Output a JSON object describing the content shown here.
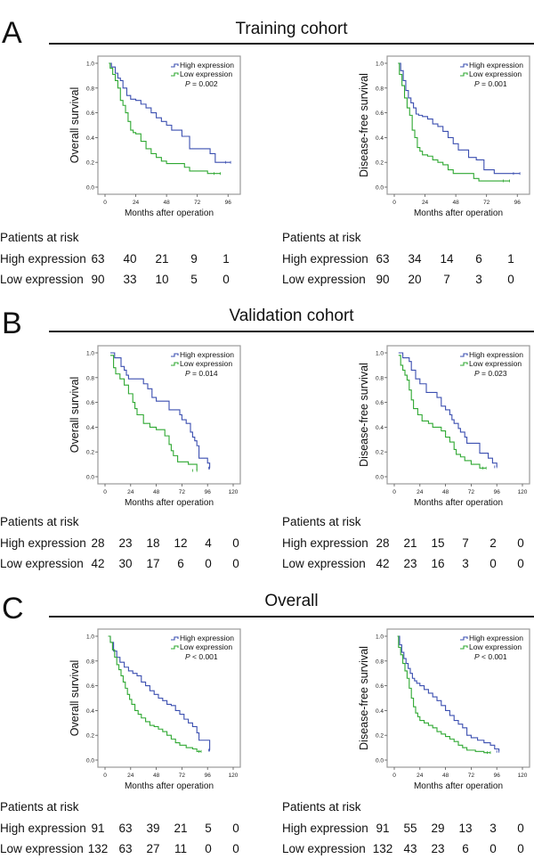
{
  "colors": {
    "high": "#3b4fb0",
    "low": "#2fa832",
    "frame": "#9a9a9a"
  },
  "sections": [
    {
      "letter": "A",
      "title": "Training cohort"
    },
    {
      "letter": "B",
      "title": "Validation cohort"
    },
    {
      "letter": "C",
      "title": "Overall"
    }
  ],
  "chart_data": [
    {
      "type": "line",
      "id": "A-OS",
      "section": "A",
      "title": "",
      "xlabel": "Months after operation",
      "ylabel": "Overall survival",
      "xlim": [
        0,
        100
      ],
      "ylim": [
        0,
        1.0
      ],
      "xticks": [
        0,
        24,
        48,
        72,
        96
      ],
      "yticks": [
        "0.0",
        "0.2",
        "0.4",
        "0.6",
        "0.8",
        "1.0"
      ],
      "legend": [
        "High expression",
        "Low expression"
      ],
      "legend_position": "top-right",
      "annotation": {
        "p_label": "P",
        "p_text": " = 0.002"
      },
      "series": [
        {
          "name": "High expression",
          "x": [
            3,
            5,
            8,
            10,
            12,
            14,
            17,
            20,
            24,
            28,
            32,
            36,
            40,
            44,
            48,
            52,
            56,
            60,
            66,
            72,
            82,
            86,
            90,
            98
          ],
          "y": [
            1.0,
            0.97,
            0.92,
            0.88,
            0.86,
            0.8,
            0.74,
            0.71,
            0.7,
            0.67,
            0.64,
            0.6,
            0.56,
            0.53,
            0.5,
            0.46,
            0.46,
            0.41,
            0.31,
            0.31,
            0.27,
            0.2,
            0.2,
            0.2
          ]
        },
        {
          "name": "Low expression",
          "x": [
            3,
            4,
            6,
            8,
            10,
            12,
            14,
            16,
            18,
            20,
            22,
            24,
            28,
            32,
            36,
            40,
            44,
            48,
            56,
            62,
            66,
            80,
            90
          ],
          "y": [
            1.0,
            0.96,
            0.91,
            0.86,
            0.8,
            0.7,
            0.66,
            0.6,
            0.53,
            0.46,
            0.44,
            0.43,
            0.37,
            0.31,
            0.27,
            0.24,
            0.21,
            0.19,
            0.19,
            0.16,
            0.13,
            0.11,
            0.11
          ]
        }
      ],
      "at_risk": {
        "header": "Patients at risk",
        "rows": [
          {
            "label": "High expression",
            "values": [
              "63",
              "40",
              "21",
              "9",
              "1"
            ]
          },
          {
            "label": "Low expression",
            "values": [
              "90",
              "33",
              "10",
              "5",
              "0"
            ]
          }
        ]
      }
    },
    {
      "type": "line",
      "id": "A-DFS",
      "section": "A",
      "title": "",
      "xlabel": "Months after operation",
      "ylabel": "Disease-free survival",
      "xlim": [
        0,
        100
      ],
      "ylim": [
        0,
        1.0
      ],
      "xticks": [
        0,
        24,
        48,
        72,
        96
      ],
      "yticks": [
        "0.0",
        "0.2",
        "0.4",
        "0.6",
        "0.8",
        "1.0"
      ],
      "legend": [
        "High expression",
        "Low expression"
      ],
      "legend_position": "top-right",
      "annotation": {
        "p_label": "P",
        "p_text": " = 0.001"
      },
      "series": [
        {
          "name": "High expression",
          "x": [
            3,
            5,
            7,
            9,
            11,
            13,
            15,
            17,
            19,
            22,
            26,
            30,
            34,
            38,
            42,
            46,
            50,
            54,
            58,
            64,
            70,
            78,
            88,
            98
          ],
          "y": [
            1.0,
            0.94,
            0.86,
            0.78,
            0.72,
            0.68,
            0.64,
            0.59,
            0.58,
            0.57,
            0.55,
            0.51,
            0.49,
            0.45,
            0.4,
            0.35,
            0.3,
            0.3,
            0.24,
            0.22,
            0.14,
            0.11,
            0.11,
            0.11
          ]
        },
        {
          "name": "Low expression",
          "x": [
            3,
            4,
            6,
            8,
            10,
            12,
            14,
            16,
            18,
            20,
            22,
            26,
            30,
            34,
            38,
            42,
            46,
            56,
            62,
            66,
            80,
            90
          ],
          "y": [
            1.0,
            0.91,
            0.82,
            0.72,
            0.64,
            0.58,
            0.46,
            0.4,
            0.32,
            0.29,
            0.26,
            0.25,
            0.22,
            0.2,
            0.18,
            0.14,
            0.11,
            0.11,
            0.07,
            0.05,
            0.05,
            0.05
          ]
        }
      ],
      "at_risk": {
        "header": "Patients at risk",
        "rows": [
          {
            "label": "High expression",
            "values": [
              "63",
              "34",
              "14",
              "6",
              "1"
            ]
          },
          {
            "label": "Low expression",
            "values": [
              "90",
              "20",
              "7",
              "3",
              "0"
            ]
          }
        ]
      }
    },
    {
      "type": "line",
      "id": "B-OS",
      "section": "B",
      "title": "",
      "xlabel": "Months after operation",
      "ylabel": "Overall survival",
      "xlim": [
        0,
        120
      ],
      "ylim": [
        0,
        1.0
      ],
      "xticks": [
        0,
        24,
        48,
        72,
        96,
        120
      ],
      "yticks": [
        "0.0",
        "0.2",
        "0.4",
        "0.6",
        "0.8",
        "1.0"
      ],
      "legend": [
        "High expression",
        "Low expression"
      ],
      "legend_position": "top-right",
      "annotation": {
        "p_label": "P",
        "p_text": " = 0.014"
      },
      "series": [
        {
          "name": "High expression",
          "x": [
            5,
            9,
            15,
            18,
            20,
            22,
            24,
            36,
            40,
            44,
            48,
            54,
            60,
            66,
            70,
            72,
            76,
            80,
            82,
            84,
            86,
            88,
            94,
            96,
            98
          ],
          "y": [
            1.0,
            0.96,
            0.89,
            0.86,
            0.82,
            0.79,
            0.79,
            0.75,
            0.71,
            0.64,
            0.61,
            0.61,
            0.54,
            0.54,
            0.5,
            0.46,
            0.43,
            0.36,
            0.32,
            0.29,
            0.25,
            0.15,
            0.15,
            0.11,
            0.07
          ]
        },
        {
          "name": "Low expression",
          "x": [
            5,
            8,
            10,
            14,
            18,
            22,
            26,
            28,
            30,
            32,
            36,
            42,
            48,
            56,
            60,
            62,
            64,
            68,
            72,
            78,
            86
          ],
          "y": [
            0.98,
            0.88,
            0.83,
            0.79,
            0.74,
            0.67,
            0.6,
            0.55,
            0.5,
            0.5,
            0.43,
            0.4,
            0.38,
            0.33,
            0.26,
            0.21,
            0.17,
            0.12,
            0.12,
            0.1,
            0.05
          ]
        }
      ],
      "at_risk": {
        "header": "Patients at risk",
        "rows": [
          {
            "label": "High expression",
            "values": [
              "28",
              "23",
              "18",
              "12",
              "4",
              "0"
            ]
          },
          {
            "label": "Low expression",
            "values": [
              "42",
              "30",
              "17",
              "6",
              "0",
              "0"
            ]
          }
        ]
      }
    },
    {
      "type": "line",
      "id": "B-DFS",
      "section": "B",
      "title": "",
      "xlabel": "Months after operation",
      "ylabel": "Disease-free survival",
      "xlim": [
        0,
        120
      ],
      "ylim": [
        0,
        1.0
      ],
      "xticks": [
        0,
        24,
        48,
        72,
        96,
        120
      ],
      "yticks": [
        "0.0",
        "0.2",
        "0.4",
        "0.6",
        "0.8",
        "1.0"
      ],
      "legend": [
        "High expression",
        "Low expression"
      ],
      "legend_position": "top-right",
      "annotation": {
        "p_label": "P",
        "p_text": " = 0.023"
      },
      "series": [
        {
          "name": "High expression",
          "x": [
            4,
            8,
            14,
            16,
            20,
            24,
            30,
            40,
            44,
            48,
            52,
            54,
            56,
            60,
            62,
            66,
            68,
            72,
            80,
            88,
            92,
            96
          ],
          "y": [
            1.0,
            0.96,
            0.93,
            0.86,
            0.79,
            0.75,
            0.68,
            0.64,
            0.57,
            0.54,
            0.5,
            0.46,
            0.43,
            0.39,
            0.36,
            0.32,
            0.27,
            0.27,
            0.19,
            0.15,
            0.11,
            0.08
          ]
        },
        {
          "name": "Low expression",
          "x": [
            4,
            6,
            8,
            10,
            12,
            14,
            16,
            18,
            20,
            22,
            26,
            32,
            36,
            44,
            48,
            52,
            56,
            58,
            62,
            66,
            72,
            80,
            86
          ],
          "y": [
            0.98,
            0.9,
            0.86,
            0.82,
            0.78,
            0.7,
            0.62,
            0.55,
            0.55,
            0.5,
            0.45,
            0.43,
            0.4,
            0.37,
            0.32,
            0.28,
            0.22,
            0.18,
            0.16,
            0.13,
            0.1,
            0.07,
            0.07
          ]
        }
      ],
      "at_risk": {
        "header": "Patients at risk",
        "rows": [
          {
            "label": "High expression",
            "values": [
              "28",
              "21",
              "15",
              "7",
              "2",
              "0"
            ]
          },
          {
            "label": "Low expression",
            "values": [
              "42",
              "23",
              "16",
              "3",
              "0",
              "0"
            ]
          }
        ]
      }
    },
    {
      "type": "line",
      "id": "C-OS",
      "section": "C",
      "title": "",
      "xlabel": "Months after operation",
      "ylabel": "Overall survival",
      "xlim": [
        0,
        120
      ],
      "ylim": [
        0,
        1.0
      ],
      "xticks": [
        0,
        24,
        48,
        72,
        96,
        120
      ],
      "yticks": [
        "0.0",
        "0.2",
        "0.4",
        "0.6",
        "0.8",
        "1.0"
      ],
      "legend": [
        "High expression",
        "Low expression"
      ],
      "legend_position": "top-right",
      "annotation": {
        "p_label": "P",
        "p_text": " < 0.001"
      },
      "series": [
        {
          "name": "High expression",
          "x": [
            3,
            5,
            8,
            11,
            14,
            18,
            22,
            26,
            30,
            34,
            38,
            42,
            46,
            50,
            54,
            58,
            62,
            66,
            70,
            74,
            78,
            82,
            86,
            88,
            96,
            98
          ],
          "y": [
            1.0,
            0.95,
            0.88,
            0.83,
            0.79,
            0.75,
            0.72,
            0.7,
            0.68,
            0.63,
            0.6,
            0.56,
            0.53,
            0.5,
            0.48,
            0.45,
            0.44,
            0.4,
            0.37,
            0.33,
            0.3,
            0.27,
            0.22,
            0.16,
            0.16,
            0.08
          ]
        },
        {
          "name": "Low expression",
          "x": [
            3,
            5,
            7,
            9,
            11,
            13,
            15,
            17,
            19,
            21,
            23,
            25,
            28,
            31,
            34,
            38,
            42,
            46,
            50,
            54,
            58,
            62,
            66,
            70,
            76,
            82,
            86,
            90
          ],
          "y": [
            1.0,
            0.95,
            0.89,
            0.83,
            0.77,
            0.73,
            0.68,
            0.63,
            0.58,
            0.53,
            0.49,
            0.45,
            0.4,
            0.37,
            0.34,
            0.31,
            0.28,
            0.27,
            0.25,
            0.23,
            0.2,
            0.17,
            0.14,
            0.12,
            0.1,
            0.09,
            0.07,
            0.07
          ]
        }
      ],
      "at_risk": {
        "header": "Patients at risk",
        "rows": [
          {
            "label": "High expression",
            "values": [
              "91",
              "63",
              "39",
              "21",
              "5",
              "0"
            ]
          },
          {
            "label": "Low expression",
            "values": [
              "132",
              "63",
              "27",
              "11",
              "0",
              "0"
            ]
          }
        ]
      }
    },
    {
      "type": "line",
      "id": "C-DFS",
      "section": "C",
      "title": "",
      "xlabel": "Months after operation",
      "ylabel": "Disease-free survival",
      "xlim": [
        0,
        120
      ],
      "ylim": [
        0,
        1.0
      ],
      "xticks": [
        0,
        24,
        48,
        72,
        96,
        120
      ],
      "yticks": [
        "0.0",
        "0.2",
        "0.4",
        "0.6",
        "0.8",
        "1.0"
      ],
      "legend": [
        "High expression",
        "Low expression"
      ],
      "legend_position": "top-right",
      "annotation": {
        "p_label": "P",
        "p_text": " < 0.001"
      },
      "series": [
        {
          "name": "High expression",
          "x": [
            3,
            5,
            7,
            9,
            11,
            13,
            15,
            17,
            19,
            21,
            24,
            28,
            32,
            36,
            40,
            44,
            48,
            52,
            56,
            60,
            64,
            68,
            72,
            78,
            84,
            90,
            94,
            98
          ],
          "y": [
            1.0,
            0.93,
            0.87,
            0.82,
            0.78,
            0.74,
            0.7,
            0.66,
            0.64,
            0.62,
            0.6,
            0.57,
            0.54,
            0.51,
            0.48,
            0.44,
            0.4,
            0.36,
            0.32,
            0.29,
            0.26,
            0.2,
            0.18,
            0.16,
            0.14,
            0.12,
            0.09,
            0.07
          ]
        },
        {
          "name": "Low expression",
          "x": [
            3,
            4,
            6,
            8,
            10,
            12,
            14,
            16,
            18,
            20,
            22,
            24,
            28,
            32,
            36,
            40,
            44,
            48,
            52,
            56,
            60,
            64,
            68,
            76,
            84,
            90
          ],
          "y": [
            1.0,
            0.91,
            0.85,
            0.78,
            0.72,
            0.66,
            0.58,
            0.5,
            0.43,
            0.38,
            0.35,
            0.32,
            0.3,
            0.28,
            0.26,
            0.23,
            0.21,
            0.19,
            0.17,
            0.15,
            0.12,
            0.1,
            0.08,
            0.07,
            0.06,
            0.06
          ]
        }
      ],
      "at_risk": {
        "header": "Patients at risk",
        "rows": [
          {
            "label": "High expression",
            "values": [
              "91",
              "55",
              "29",
              "13",
              "3",
              "0"
            ]
          },
          {
            "label": "Low expression",
            "values": [
              "132",
              "43",
              "23",
              "6",
              "0",
              "0"
            ]
          }
        ]
      }
    }
  ]
}
